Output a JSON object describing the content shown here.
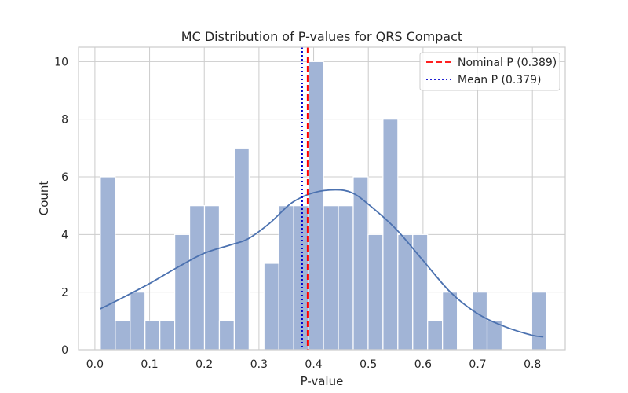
{
  "chart_data": {
    "type": "bar",
    "title": "MC Distribution of P-values for QRS Compact",
    "xlabel": "P-value",
    "ylabel": "Count",
    "xlim": [
      -0.03,
      0.86
    ],
    "ylim": [
      0,
      10.5
    ],
    "xticks": [
      "0.0",
      "0.1",
      "0.2",
      "0.3",
      "0.4",
      "0.5",
      "0.6",
      "0.7",
      "0.8"
    ],
    "yticks": [
      "0",
      "2",
      "4",
      "6",
      "8",
      "10"
    ],
    "grid": true,
    "legend_position": "top-right",
    "histogram": {
      "bin_start": 0.01,
      "bin_width": 0.0272,
      "counts": [
        6,
        1,
        2,
        1,
        1,
        4,
        5,
        5,
        1,
        7,
        0,
        3,
        5,
        5,
        10,
        5,
        5,
        6,
        4,
        8,
        4,
        4,
        1,
        2,
        0,
        2,
        1,
        0,
        0,
        2
      ],
      "color": "#a1b4d6"
    },
    "kde": {
      "color": "#4c72b0",
      "x": [
        0.01,
        0.05,
        0.1,
        0.15,
        0.2,
        0.25,
        0.28,
        0.32,
        0.36,
        0.4,
        0.44,
        0.47,
        0.5,
        0.55,
        0.6,
        0.65,
        0.7,
        0.75,
        0.8,
        0.82
      ],
      "y": [
        1.42,
        1.8,
        2.3,
        2.85,
        3.35,
        3.65,
        3.85,
        4.4,
        5.1,
        5.45,
        5.55,
        5.45,
        5.05,
        4.2,
        3.1,
        2.0,
        1.25,
        0.8,
        0.5,
        0.45
      ]
    },
    "reference_lines": [
      {
        "name": "Nominal P (0.389)",
        "x": 0.389,
        "color": "#ff0000",
        "style": "dashed"
      },
      {
        "name": "Mean P (0.379)",
        "x": 0.379,
        "color": "#0000cc",
        "style": "dotted"
      }
    ]
  }
}
